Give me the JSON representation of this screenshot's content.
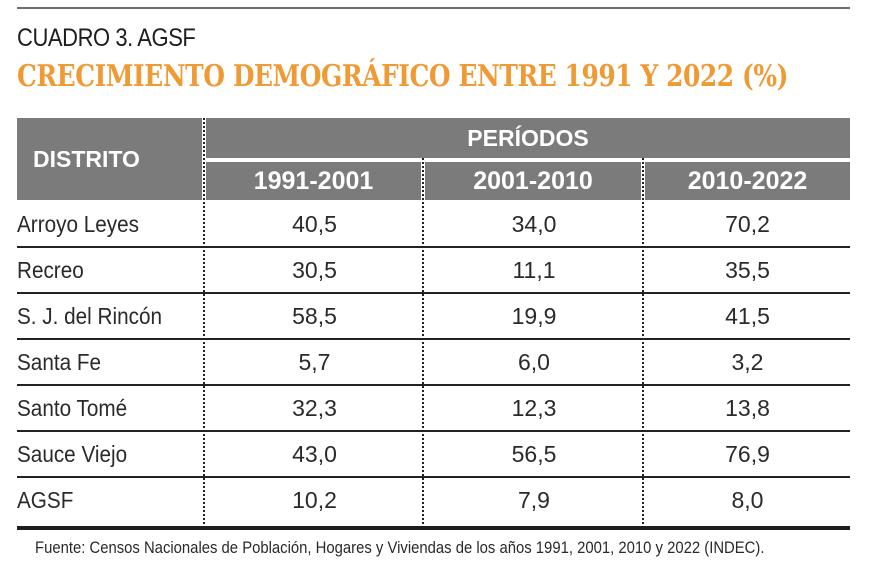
{
  "subtitle": "CUADRO 3. AGSF",
  "title": "CRECIMIENTO DEMOGRÁFICO ENTRE 1991 Y 2022 (%)",
  "table": {
    "col_district": "DISTRITO",
    "col_group": "PERÍODOS",
    "periods": [
      "1991-2001",
      "2001-2010",
      "2010-2022"
    ],
    "rows": [
      {
        "district": "Arroyo Leyes",
        "values": [
          "40,5",
          "34,0",
          "70,2"
        ]
      },
      {
        "district": "Recreo",
        "values": [
          "30,5",
          "11,1",
          "35,5"
        ]
      },
      {
        "district": "S. J. del Rincón",
        "values": [
          "58,5",
          "19,9",
          "41,5"
        ]
      },
      {
        "district": "Santa Fe",
        "values": [
          "5,7",
          "6,0",
          "3,2"
        ]
      },
      {
        "district": "Santo Tomé",
        "values": [
          "32,3",
          "12,3",
          "13,8"
        ]
      },
      {
        "district": "Sauce Viejo",
        "values": [
          "43,0",
          "56,5",
          "76,9"
        ]
      },
      {
        "district": "AGSF",
        "values": [
          "10,2",
          "7,9",
          "8,0"
        ]
      }
    ]
  },
  "source": "Fuente: Censos Nacionales de Población, Hogares y Viviendas de los años 1991, 2001, 2010 y 2022 (INDEC).",
  "colors": {
    "accent": "#ef9a34",
    "header_bg": "#7b7b7b"
  }
}
